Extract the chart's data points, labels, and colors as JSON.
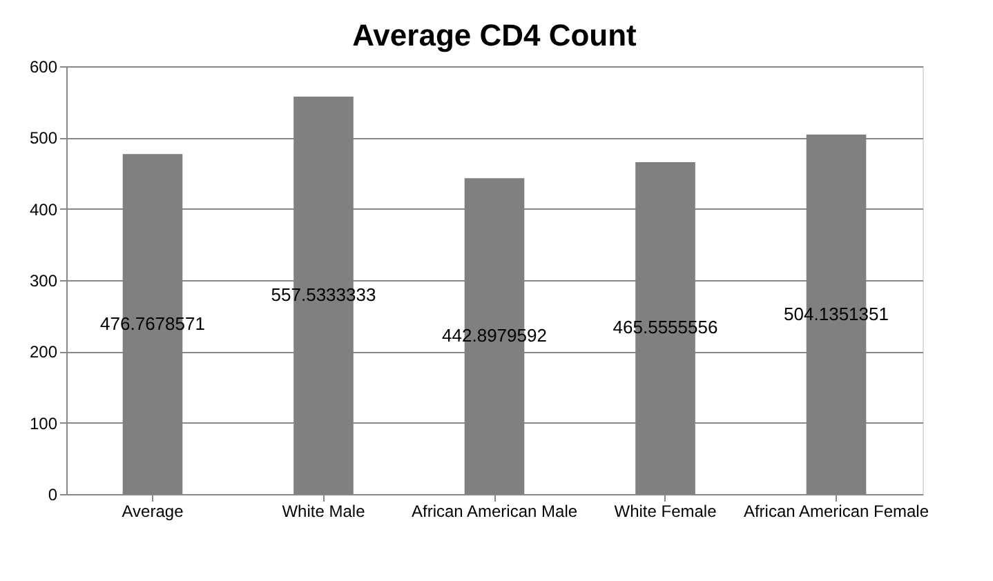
{
  "chart_data": {
    "type": "bar",
    "title": "Average CD4 Count",
    "categories": [
      "Average",
      "White Male",
      "African American Male",
      "White Female",
      "African American Female"
    ],
    "values": [
      476.7678571,
      557.5333333,
      442.8979592,
      465.5555556,
      504.1351351
    ],
    "color": "#808080",
    "ylim": [
      0,
      600
    ],
    "yticks": [
      0,
      100,
      200,
      300,
      400,
      500,
      600
    ],
    "grid": "y",
    "data_labels": true
  }
}
